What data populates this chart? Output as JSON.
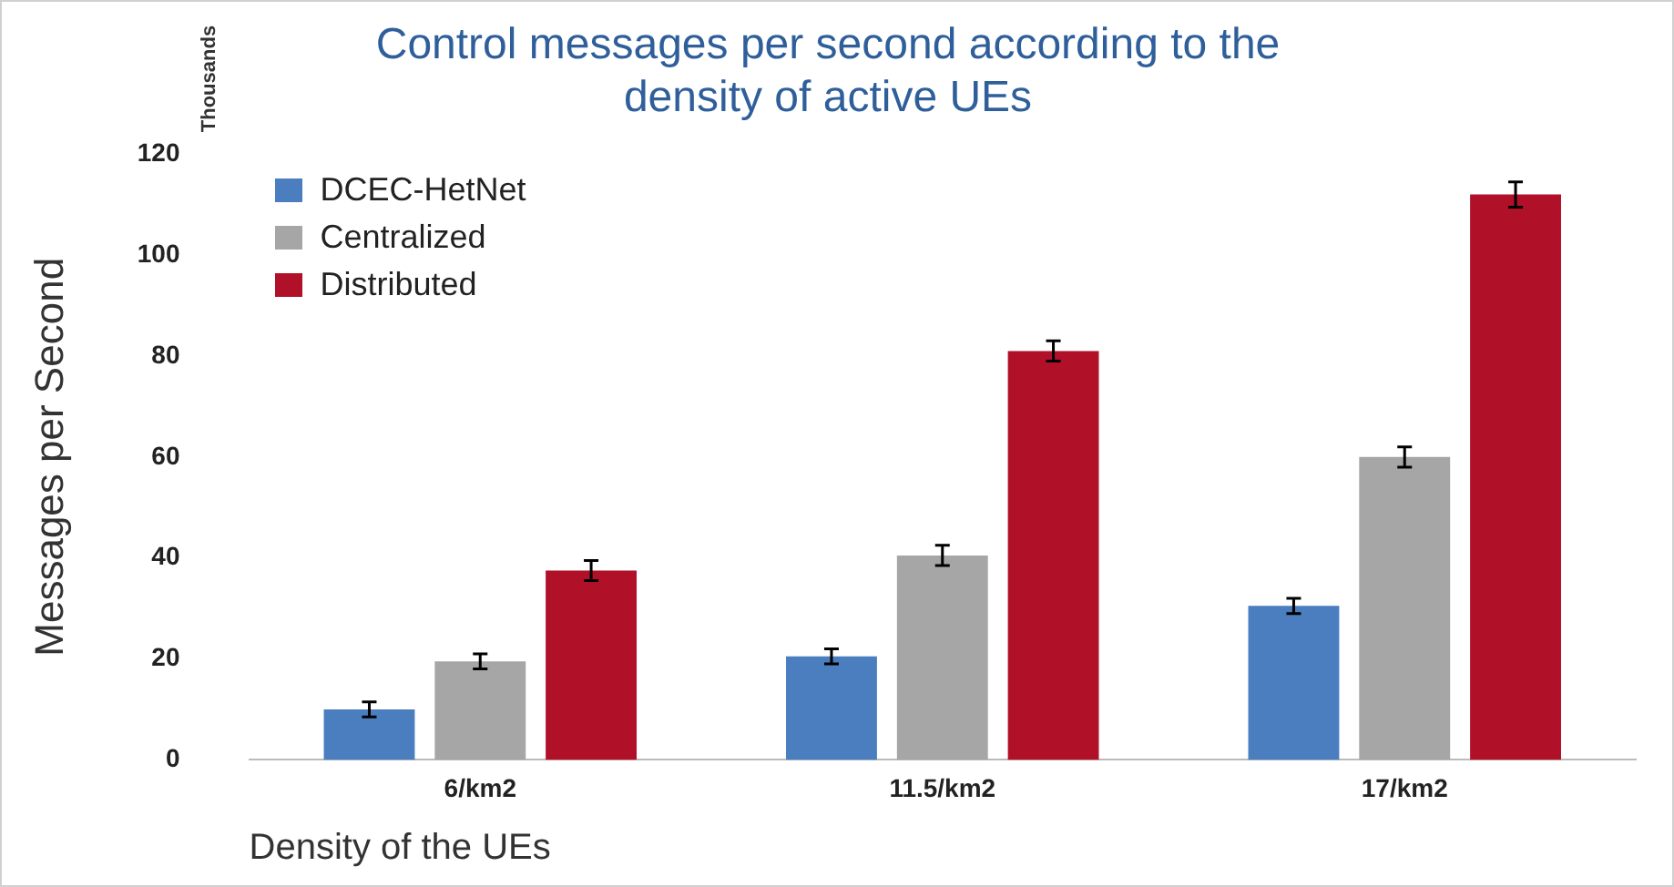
{
  "chart_data": {
    "type": "bar",
    "title": "Control messages per second according to the density of active UEs",
    "xlabel": "Density of the UEs",
    "ylabel": "Messages per Second",
    "annotations": [
      "Thousands"
    ],
    "categories": [
      "6/km2",
      "11.5/km2",
      "17/km2"
    ],
    "series": [
      {
        "name": "DCEC-HetNet",
        "color": "#4a7ebf",
        "values": [
          10,
          20.5,
          30.5
        ],
        "errors": [
          1.5,
          1.5,
          1.5
        ]
      },
      {
        "name": "Centralized",
        "color": "#a6a6a6",
        "values": [
          19.5,
          40.5,
          60
        ],
        "errors": [
          1.5,
          2,
          2
        ]
      },
      {
        "name": "Distributed",
        "color": "#b01028",
        "values": [
          37.5,
          81,
          112
        ],
        "errors": [
          2,
          2,
          2.5
        ]
      }
    ],
    "ylim": [
      0,
      120
    ],
    "yticks": [
      0,
      20,
      40,
      60,
      80,
      100,
      120
    ],
    "grid": false,
    "legend": "top left"
  }
}
